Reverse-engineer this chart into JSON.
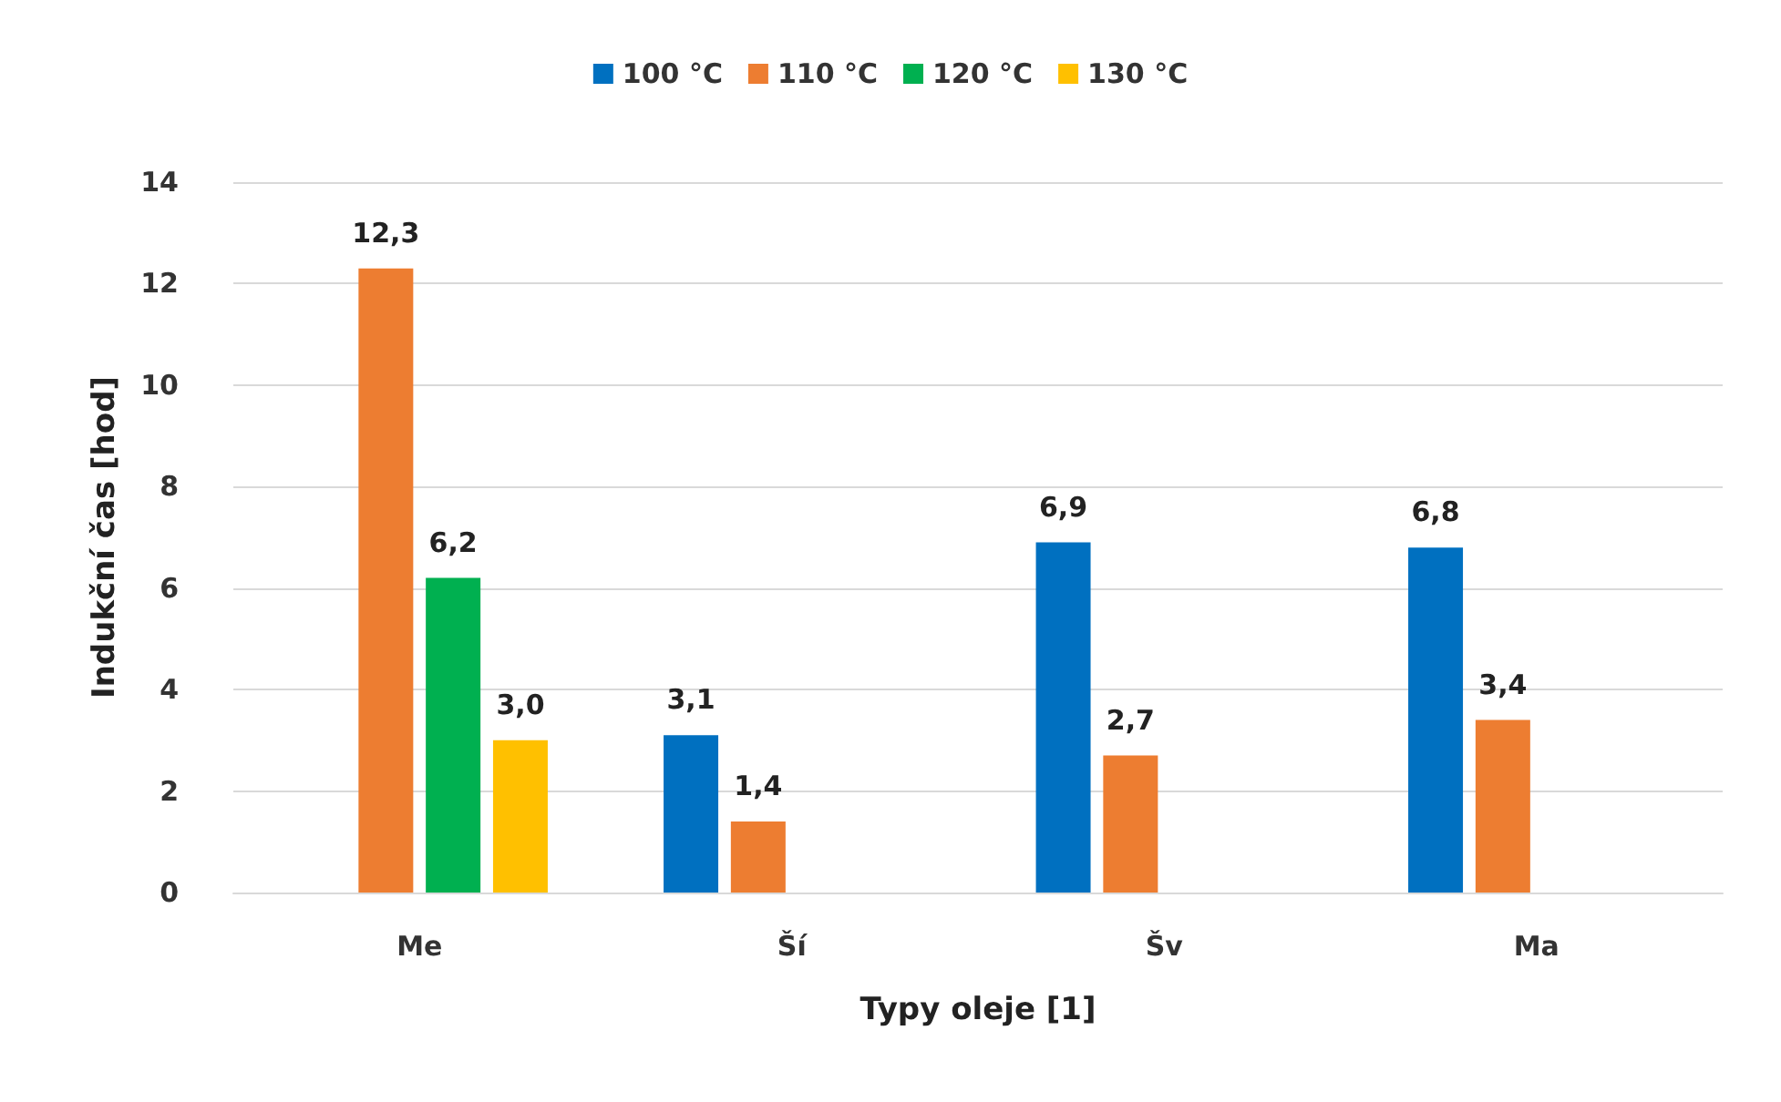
{
  "chart_data": {
    "type": "bar",
    "xlabel": "Typy oleje [1]",
    "ylabel": "Indukční čas [hod]",
    "categories": [
      "Me",
      "Ší",
      "Šv",
      "Ma"
    ],
    "series": [
      {
        "name": "100 °C",
        "color": "#0070c0",
        "values": [
          null,
          3.1,
          6.9,
          6.8
        ],
        "value_labels": [
          null,
          "3,1",
          "6,9",
          "6,8"
        ]
      },
      {
        "name": "110 °C",
        "color": "#ed7d31",
        "values": [
          12.3,
          1.4,
          2.7,
          3.4
        ],
        "value_labels": [
          "12,3",
          "1,4",
          "2,7",
          "3,4"
        ]
      },
      {
        "name": "120 °C",
        "color": "#00b050",
        "values": [
          6.2,
          null,
          null,
          null
        ],
        "value_labels": [
          "6,2",
          null,
          null,
          null
        ]
      },
      {
        "name": "130 °C",
        "color": "#ffc000",
        "values": [
          3.0,
          null,
          null,
          null
        ],
        "value_labels": [
          "3,0",
          null,
          null,
          null
        ]
      }
    ],
    "ylim": [
      0,
      14
    ],
    "yticks": [
      0,
      2,
      4,
      6,
      8,
      10,
      12,
      14
    ],
    "grid": "y",
    "legend": "top"
  }
}
